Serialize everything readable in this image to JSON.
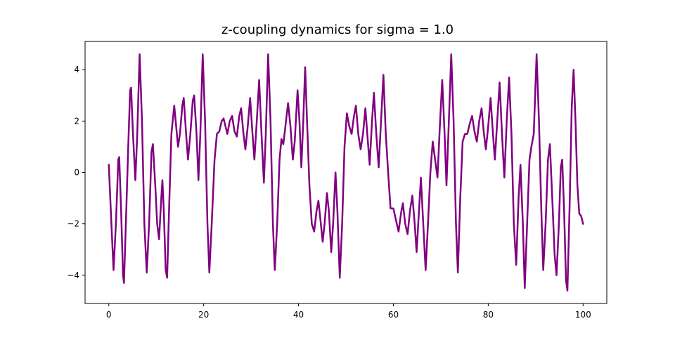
{
  "chart_data": {
    "type": "line",
    "title": "z-coupling dynamics for sigma = 1.0",
    "xlabel": "",
    "ylabel": "",
    "xlim": [
      -5,
      105
    ],
    "ylim": [
      -5.1,
      5.1
    ],
    "xticks": [
      0,
      20,
      40,
      60,
      80,
      100
    ],
    "yticks": [
      -4,
      -2,
      0,
      2,
      4
    ],
    "grid": false,
    "legend": "none",
    "series": [
      {
        "color": "#800080",
        "points": [
          [
            0,
            0.3
          ],
          [
            0.5,
            -1.8
          ],
          [
            1.0,
            -3.8
          ],
          [
            1.5,
            -2.0
          ],
          [
            2.0,
            0.5
          ],
          [
            2.2,
            0.6
          ],
          [
            2.6,
            -1.5
          ],
          [
            3.0,
            -4.0
          ],
          [
            3.2,
            -4.3
          ],
          [
            3.6,
            -2.0
          ],
          [
            4.1,
            1.0
          ],
          [
            4.5,
            3.2
          ],
          [
            4.7,
            3.3
          ],
          [
            5.1,
            1.5
          ],
          [
            5.6,
            -0.3
          ],
          [
            6.0,
            1.5
          ],
          [
            6.5,
            4.6
          ],
          [
            7.0,
            2.0
          ],
          [
            7.5,
            -2.0
          ],
          [
            8.0,
            -3.9
          ],
          [
            8.5,
            -2.0
          ],
          [
            9.0,
            0.8
          ],
          [
            9.3,
            1.1
          ],
          [
            9.8,
            -0.5
          ],
          [
            10.2,
            -2.0
          ],
          [
            10.6,
            -2.6
          ],
          [
            11.0,
            -1.2
          ],
          [
            11.3,
            -0.3
          ],
          [
            11.6,
            -1.5
          ],
          [
            12.0,
            -3.8
          ],
          [
            12.3,
            -4.1
          ],
          [
            12.7,
            -1.5
          ],
          [
            13.2,
            1.5
          ],
          [
            13.8,
            2.6
          ],
          [
            14.2,
            1.8
          ],
          [
            14.6,
            1.0
          ],
          [
            15.0,
            1.5
          ],
          [
            15.5,
            2.6
          ],
          [
            15.8,
            2.9
          ],
          [
            16.3,
            1.5
          ],
          [
            16.7,
            0.5
          ],
          [
            17.2,
            1.5
          ],
          [
            17.7,
            2.8
          ],
          [
            18.0,
            3.0
          ],
          [
            18.5,
            1.5
          ],
          [
            18.9,
            -0.3
          ],
          [
            19.3,
            1.5
          ],
          [
            19.8,
            4.6
          ],
          [
            20.3,
            2.0
          ],
          [
            20.8,
            -2.0
          ],
          [
            21.2,
            -3.9
          ],
          [
            21.7,
            -2.0
          ],
          [
            22.3,
            0.5
          ],
          [
            22.8,
            1.5
          ],
          [
            23.3,
            1.6
          ],
          [
            23.8,
            2.0
          ],
          [
            24.2,
            2.1
          ],
          [
            24.6,
            1.8
          ],
          [
            25.0,
            1.5
          ],
          [
            25.5,
            2.0
          ],
          [
            26.0,
            2.2
          ],
          [
            26.5,
            1.6
          ],
          [
            27.0,
            1.4
          ],
          [
            27.5,
            2.2
          ],
          [
            27.9,
            2.5
          ],
          [
            28.4,
            1.5
          ],
          [
            28.8,
            0.9
          ],
          [
            29.3,
            1.8
          ],
          [
            29.8,
            2.9
          ],
          [
            30.3,
            1.5
          ],
          [
            30.7,
            0.5
          ],
          [
            31.2,
            2.0
          ],
          [
            31.7,
            3.6
          ],
          [
            32.2,
            1.5
          ],
          [
            32.7,
            -0.4
          ],
          [
            33.1,
            1.5
          ],
          [
            33.6,
            4.6
          ],
          [
            34.1,
            2.0
          ],
          [
            34.6,
            -2.0
          ],
          [
            35.0,
            -3.8
          ],
          [
            35.5,
            -2.0
          ],
          [
            36.0,
            0.5
          ],
          [
            36.4,
            1.3
          ],
          [
            36.8,
            1.1
          ],
          [
            37.3,
            1.9
          ],
          [
            37.8,
            2.7
          ],
          [
            38.3,
            1.8
          ],
          [
            38.8,
            0.5
          ],
          [
            39.2,
            1.2
          ],
          [
            39.8,
            3.2
          ],
          [
            40.2,
            2.0
          ],
          [
            40.6,
            0.2
          ],
          [
            41.0,
            2.0
          ],
          [
            41.4,
            4.1
          ],
          [
            41.8,
            2.0
          ],
          [
            42.3,
            -0.5
          ],
          [
            42.8,
            -2.0
          ],
          [
            43.3,
            -2.3
          ],
          [
            43.8,
            -1.5
          ],
          [
            44.2,
            -1.1
          ],
          [
            44.6,
            -1.8
          ],
          [
            45.1,
            -2.7
          ],
          [
            45.5,
            -2.0
          ],
          [
            46.0,
            -0.8
          ],
          [
            46.4,
            -1.5
          ],
          [
            46.9,
            -3.1
          ],
          [
            47.3,
            -2.0
          ],
          [
            47.8,
            0.0
          ],
          [
            48.2,
            -1.5
          ],
          [
            48.7,
            -4.1
          ],
          [
            49.2,
            -2.0
          ],
          [
            49.7,
            1.0
          ],
          [
            50.2,
            2.3
          ],
          [
            50.7,
            1.8
          ],
          [
            51.2,
            1.5
          ],
          [
            51.7,
            2.2
          ],
          [
            52.1,
            2.6
          ],
          [
            52.6,
            1.5
          ],
          [
            53.1,
            0.9
          ],
          [
            53.6,
            1.5
          ],
          [
            54.1,
            2.5
          ],
          [
            54.5,
            1.5
          ],
          [
            55.0,
            0.3
          ],
          [
            55.5,
            2.0
          ],
          [
            55.9,
            3.1
          ],
          [
            56.4,
            1.5
          ],
          [
            56.9,
            0.2
          ],
          [
            57.4,
            2.0
          ],
          [
            57.9,
            3.8
          ],
          [
            58.4,
            1.5
          ],
          [
            58.9,
            0.0
          ],
          [
            59.4,
            -1.4
          ],
          [
            60.0,
            -1.4
          ],
          [
            60.6,
            -1.9
          ],
          [
            61.1,
            -2.3
          ],
          [
            61.6,
            -1.6
          ],
          [
            62.0,
            -1.2
          ],
          [
            62.5,
            -2.0
          ],
          [
            63.0,
            -2.4
          ],
          [
            63.5,
            -1.5
          ],
          [
            64.0,
            -0.9
          ],
          [
            64.5,
            -2.0
          ],
          [
            64.9,
            -3.1
          ],
          [
            65.4,
            -1.5
          ],
          [
            65.8,
            -0.2
          ],
          [
            66.3,
            -2.0
          ],
          [
            66.8,
            -3.8
          ],
          [
            67.3,
            -2.0
          ],
          [
            67.8,
            0.0
          ],
          [
            68.3,
            1.2
          ],
          [
            68.8,
            0.5
          ],
          [
            69.3,
            -0.2
          ],
          [
            69.8,
            1.8
          ],
          [
            70.3,
            3.6
          ],
          [
            70.8,
            1.5
          ],
          [
            71.2,
            -0.5
          ],
          [
            71.7,
            2.0
          ],
          [
            72.2,
            4.6
          ],
          [
            72.7,
            2.0
          ],
          [
            73.2,
            -2.0
          ],
          [
            73.6,
            -3.9
          ],
          [
            74.1,
            -1.0
          ],
          [
            74.6,
            1.2
          ],
          [
            75.1,
            1.5
          ],
          [
            75.6,
            1.5
          ],
          [
            76.1,
            1.9
          ],
          [
            76.6,
            2.2
          ],
          [
            77.1,
            1.6
          ],
          [
            77.6,
            1.2
          ],
          [
            78.1,
            2.0
          ],
          [
            78.6,
            2.5
          ],
          [
            79.1,
            1.5
          ],
          [
            79.5,
            0.9
          ],
          [
            80.0,
            1.8
          ],
          [
            80.5,
            2.9
          ],
          [
            81.0,
            1.5
          ],
          [
            81.4,
            0.5
          ],
          [
            81.9,
            2.0
          ],
          [
            82.4,
            3.5
          ],
          [
            82.9,
            1.5
          ],
          [
            83.4,
            -0.2
          ],
          [
            83.9,
            2.0
          ],
          [
            84.4,
            3.7
          ],
          [
            84.9,
            1.5
          ],
          [
            85.4,
            -2.0
          ],
          [
            85.9,
            -3.6
          ],
          [
            86.4,
            -1.0
          ],
          [
            86.8,
            0.3
          ],
          [
            87.3,
            -2.0
          ],
          [
            87.7,
            -4.5
          ],
          [
            88.2,
            -2.0
          ],
          [
            88.7,
            0.5
          ],
          [
            89.1,
            1.0
          ],
          [
            89.6,
            1.5
          ],
          [
            90.2,
            4.6
          ],
          [
            90.7,
            2.0
          ],
          [
            91.2,
            -1.5
          ],
          [
            91.6,
            -3.8
          ],
          [
            92.1,
            -2.0
          ],
          [
            92.6,
            0.5
          ],
          [
            93.0,
            1.1
          ],
          [
            93.5,
            -1.0
          ],
          [
            94.0,
            -3.2
          ],
          [
            94.4,
            -4.0
          ],
          [
            94.9,
            -2.0
          ],
          [
            95.3,
            0.2
          ],
          [
            95.6,
            0.5
          ],
          [
            96.0,
            -1.5
          ],
          [
            96.4,
            -4.2
          ],
          [
            96.7,
            -4.6
          ],
          [
            97.2,
            -1.0
          ],
          [
            97.6,
            2.5
          ],
          [
            98.0,
            4.0
          ],
          [
            98.4,
            2.0
          ],
          [
            98.8,
            -0.5
          ],
          [
            99.2,
            -1.6
          ],
          [
            99.6,
            -1.7
          ],
          [
            100.0,
            -2.0
          ]
        ]
      }
    ]
  }
}
